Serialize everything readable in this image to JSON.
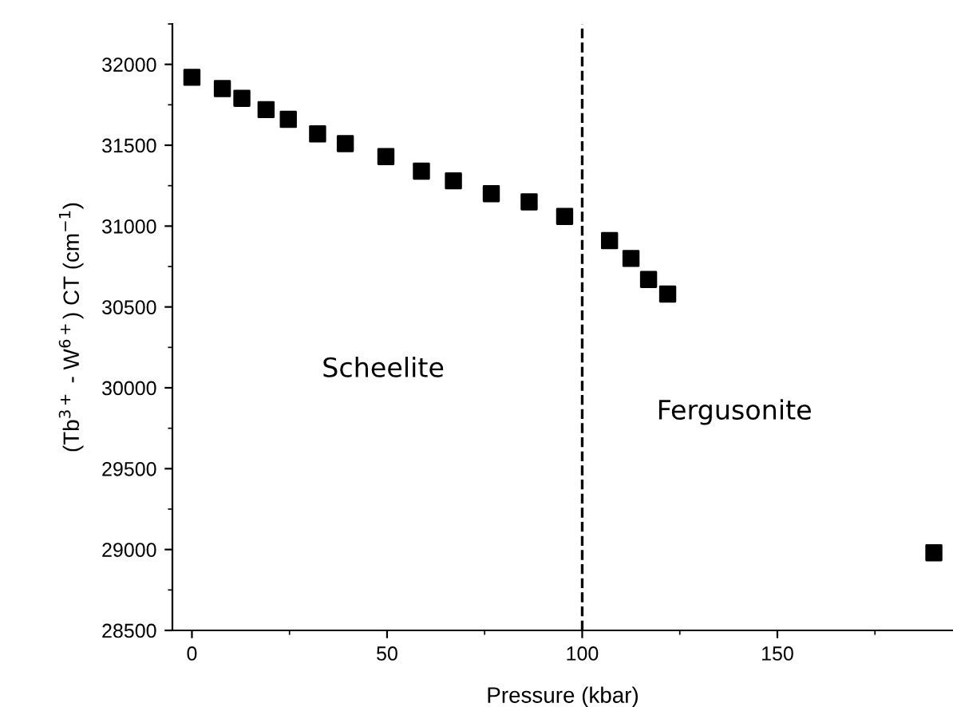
{
  "chart_data": {
    "type": "scatter",
    "xlabel": "Pressure (kbar)",
    "ylabel": "(Tb$^{3+}$ - W$^{6+}$) CT (cm$^{−1}$)",
    "x": [
      0,
      7.8,
      12.8,
      19,
      24.7,
      32.2,
      39.3,
      49.7,
      58.8,
      67,
      76.7,
      86.4,
      95.5,
      107,
      112.5,
      117,
      121.9,
      190.1
    ],
    "series": [
      {
        "color": "#000000",
        "values": [
          31920,
          31850,
          31790,
          31720,
          31660,
          31570,
          31510,
          31430,
          31340,
          31280,
          31200,
          31150,
          31060,
          30910,
          30800,
          30670,
          30580,
          28980
        ]
      }
    ],
    "marker": "square",
    "xlim": [
      -5,
      195
    ],
    "ylim": [
      28500,
      32250
    ],
    "xticks": [
      0,
      50,
      100,
      150
    ],
    "yticks": [
      28500,
      29000,
      29500,
      30000,
      30500,
      31000,
      31500,
      32000
    ],
    "grid": false,
    "legend": false,
    "ref_lines": [
      {
        "axis": "x",
        "value": 100,
        "line_style": "dashed",
        "color": "#000000"
      }
    ],
    "annotations": [
      "Scheelite",
      "Fergusonite"
    ]
  }
}
